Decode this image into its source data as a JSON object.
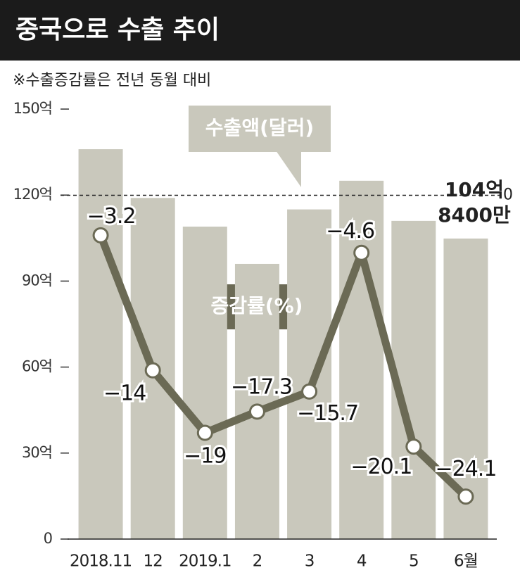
{
  "chart_data": {
    "type": "bar_line",
    "title": "중국으로 수출 추이",
    "subtitle": "※수출증감률은 전년 동월 대비",
    "categories": [
      "2018.11",
      "12",
      "2019.1",
      "2",
      "3",
      "4",
      "5",
      "6월"
    ],
    "series": [
      {
        "name": "수출액(달러)",
        "type": "bar",
        "color": "#c9c8bc",
        "values": [
          136,
          119,
          109,
          96,
          115,
          125,
          111,
          104.84
        ],
        "value_labels": [
          null,
          null,
          null,
          null,
          null,
          null,
          null,
          [
            "104억",
            "8400만"
          ]
        ]
      },
      {
        "name": "증감률(%)",
        "type": "line",
        "axis": "y2",
        "color": "#6b6a55",
        "values": [
          -3.2,
          -14,
          -19,
          -17.3,
          -15.7,
          -4.6,
          -20.1,
          -24.1
        ],
        "value_labels": [
          "−3.2",
          "−14",
          "−19",
          "−17.3",
          "−15.7",
          "−4.6",
          "−20.1",
          "−24.1"
        ]
      }
    ],
    "ylim": [
      0,
      150
    ],
    "yticks": [
      0,
      {
        "value": 30,
        "label": "30억"
      },
      {
        "value": 60,
        "label": "60억"
      },
      {
        "value": 90,
        "label": "90억"
      },
      {
        "value": 120,
        "label": "120억"
      },
      {
        "value": 150,
        "label": "150억"
      }
    ],
    "y2lim": [
      -27.5,
      6.9
    ],
    "y2ticks": [
      0
    ]
  }
}
